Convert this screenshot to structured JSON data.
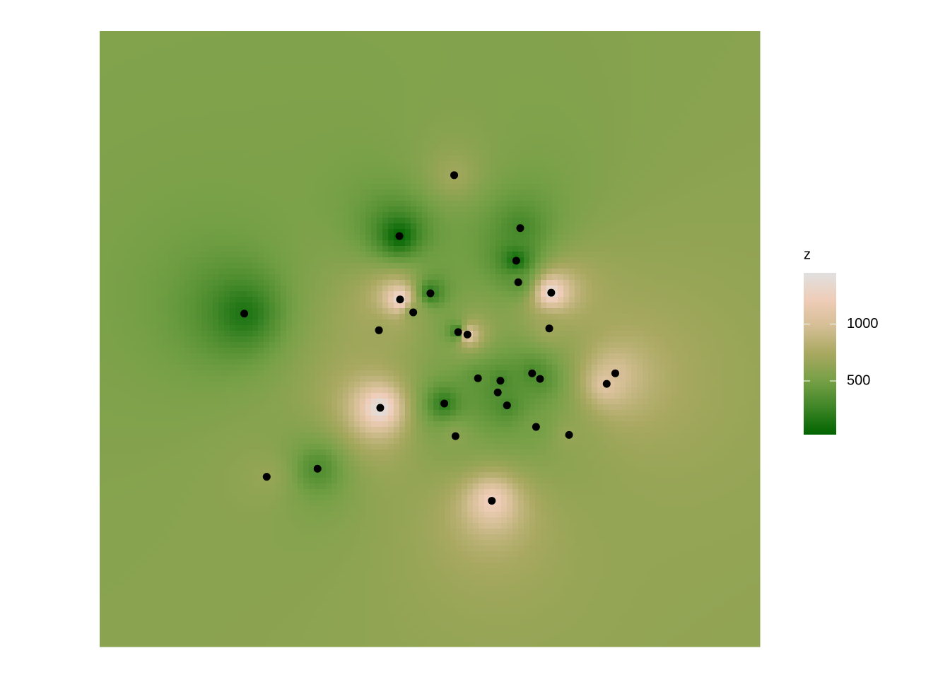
{
  "chart_data": {
    "type": "idw",
    "xlim": [
      0,
      100
    ],
    "ylim": [
      0,
      100
    ],
    "x": [
      53.7,
      45.4,
      63.7,
      63.1,
      63.4,
      68.4,
      21.9,
      45.5,
      50.1,
      47.5,
      42.3,
      54.3,
      55.7,
      68.1,
      78.1,
      76.8,
      57.3,
      60.7,
      65.5,
      66.7,
      60.3,
      61.7,
      52.2,
      42.5,
      66.1,
      53.9,
      71.1,
      25.3,
      33.0,
      59.4
    ],
    "y": [
      76.6,
      66.7,
      68.0,
      62.7,
      59.2,
      57.5,
      54.1,
      56.4,
      57.4,
      54.3,
      51.4,
      51.1,
      50.7,
      51.7,
      44.4,
      42.7,
      43.6,
      43.2,
      44.4,
      43.5,
      41.3,
      39.2,
      39.5,
      38.8,
      35.7,
      34.2,
      34.4,
      27.6,
      28.9,
      23.7
    ],
    "z": [
      700,
      50,
      300,
      100,
      400,
      1400,
      150,
      1400,
      200,
      600,
      700,
      200,
      1200,
      700,
      1000,
      1100,
      400,
      300,
      300,
      350,
      350,
      300,
      200,
      1450,
      500,
      600,
      650,
      650,
      350,
      1250
    ],
    "point_color": "#000000",
    "legend_title": "z",
    "zlim": [
      30,
      1450
    ],
    "zticks": [
      500,
      1000
    ],
    "colors": [
      "#006400",
      "#3d8526",
      "#76a046",
      "#a8a860",
      "#d4be94",
      "#efcdb8",
      "#e0e0e0"
    ]
  }
}
